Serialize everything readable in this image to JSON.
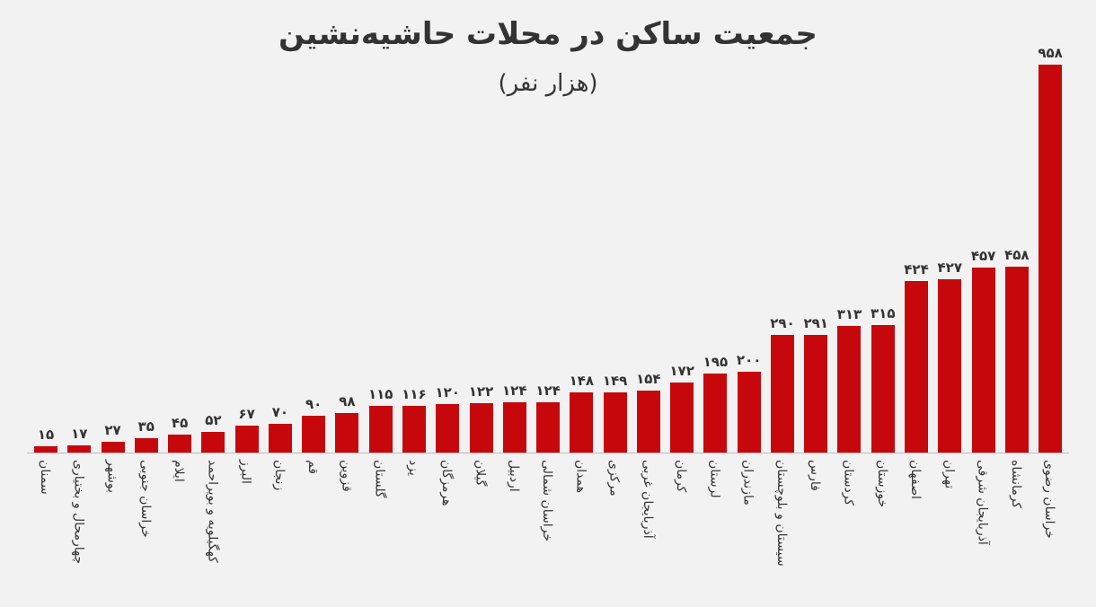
{
  "chart_data": {
    "type": "bar",
    "title": "جمعیت ساکن در محلات حاشیه‌نشین",
    "subtitle": "(هزار نفر)",
    "xlabel": "",
    "ylabel": "",
    "ylim": [
      0,
      958
    ],
    "grid": false,
    "legend": null,
    "bar_color": "#c6080d",
    "categories": [
      "سمنان",
      "چهارمحال و بختیاری",
      "بوشهر",
      "خراسان جنوبی",
      "ایلام",
      "کهگیلویه و بویراحمد",
      "البرز",
      "زنجان",
      "قم",
      "قزوین",
      "گلستان",
      "یزد",
      "هرمزگان",
      "گیلان",
      "اردبیل",
      "خراسان شمالی",
      "همدان",
      "مرکزی",
      "آذربایجان غربی",
      "کرمان",
      "لرستان",
      "مازندران",
      "سیستان و بلوچستان",
      "فارس",
      "کردستان",
      "خوزستان",
      "اصفهان",
      "تهران",
      "آذربایجان شرقی",
      "کرمانشاه",
      "خراسان رضوی"
    ],
    "values": [
      15,
      17,
      27,
      35,
      45,
      52,
      67,
      70,
      90,
      98,
      115,
      116,
      120,
      122,
      124,
      124,
      148,
      149,
      154,
      172,
      195,
      200,
      290,
      291,
      313,
      315,
      424,
      427,
      457,
      458,
      958
    ],
    "value_labels": [
      "۱۵",
      "۱۷",
      "۲۷",
      "۳۵",
      "۴۵",
      "۵۲",
      "۶۷",
      "۷۰",
      "۹۰",
      "۹۸",
      "۱۱۵",
      "۱۱۶",
      "۱۲۰",
      "۱۲۲",
      "۱۲۴",
      "۱۲۴",
      "۱۴۸",
      "۱۴۹",
      "۱۵۴",
      "۱۷۲",
      "۱۹۵",
      "۲۰۰",
      "۲۹۰",
      "۲۹۱",
      "۳۱۳",
      "۳۱۵",
      "۴۲۴",
      "۴۲۷",
      "۴۵۷",
      "۴۵۸",
      "۹۵۸"
    ]
  }
}
